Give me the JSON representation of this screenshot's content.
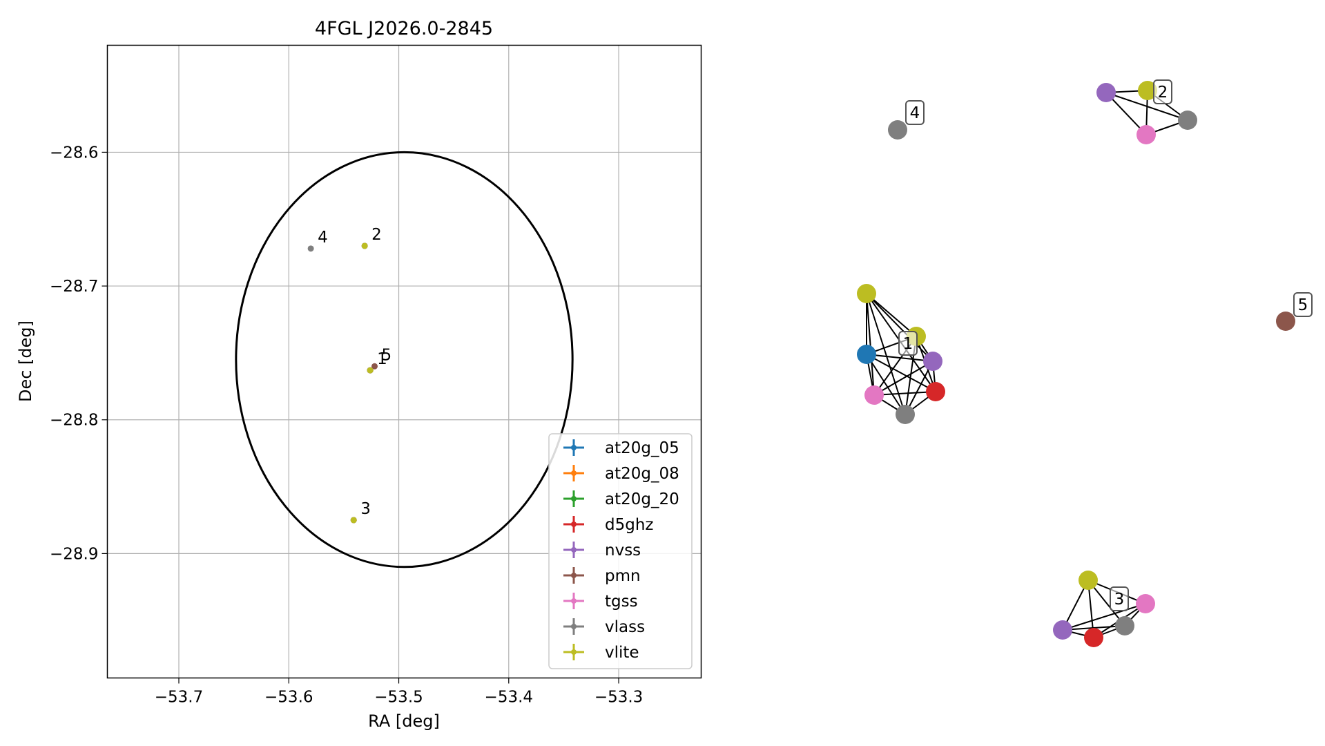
{
  "figure": {
    "background": "#ffffff"
  },
  "chart_data": [
    {
      "type": "scatter",
      "title": "4FGL J2026.0-2845",
      "xlabel": "RA [deg]",
      "ylabel": "Dec [deg]",
      "xlim": [
        -53.765,
        -53.225
      ],
      "ylim": [
        -28.993,
        -28.52
      ],
      "x_inverted": false,
      "grid": true,
      "xticks": [
        -53.7,
        -53.6,
        -53.5,
        -53.4,
        -53.3
      ],
      "xtick_labels": [
        "−53.7",
        "−53.6",
        "−53.5",
        "−53.4",
        "−53.3"
      ],
      "yticks": [
        -28.6,
        -28.7,
        -28.8,
        -28.9
      ],
      "ytick_labels": [
        "−28.6",
        "−28.7",
        "−28.8",
        "−28.9"
      ],
      "ellipse": {
        "center": [
          -53.495,
          -28.755
        ],
        "semi_axis_ra": 0.153,
        "semi_axis_dec": 0.155,
        "color": "#000000"
      },
      "legend_position": "lower-right",
      "series": [
        {
          "name": "at20g_05",
          "color": "#1f77b4",
          "x": [
            -53.526
          ],
          "y": [
            -28.763
          ]
        },
        {
          "name": "at20g_08",
          "color": "#ff7f0e",
          "x": [
            -53.526
          ],
          "y": [
            -28.763
          ]
        },
        {
          "name": "at20g_20",
          "color": "#2ca02c",
          "x": [
            -53.526
          ],
          "y": [
            -28.763
          ]
        },
        {
          "name": "d5ghz",
          "color": "#d62728",
          "x": [
            -53.526
          ],
          "y": [
            -28.763
          ]
        },
        {
          "name": "nvss",
          "color": "#9467bd",
          "x": [
            -53.526,
            -53.531,
            -53.541
          ],
          "y": [
            -28.763,
            -28.67,
            -28.875
          ]
        },
        {
          "name": "pmn",
          "color": "#8c564b",
          "x": [
            -53.522
          ],
          "y": [
            -28.76
          ]
        },
        {
          "name": "tgss",
          "color": "#e377c2",
          "x": [
            -53.526,
            -53.531,
            -53.541
          ],
          "y": [
            -28.763,
            -28.67,
            -28.875
          ]
        },
        {
          "name": "vlass",
          "color": "#7f7f7f",
          "x": [
            -53.526,
            -53.531,
            -53.541,
            -53.58
          ],
          "y": [
            -28.763,
            -28.67,
            -28.875,
            -28.672
          ]
        },
        {
          "name": "vlite",
          "color": "#bcbd22",
          "x": [
            -53.526,
            -53.531,
            -53.541
          ],
          "y": [
            -28.763,
            -28.67,
            -28.875
          ]
        }
      ],
      "annotations": [
        {
          "text": "1",
          "x": -53.526,
          "y": -28.763
        },
        {
          "text": "2",
          "x": -53.531,
          "y": -28.67
        },
        {
          "text": "3",
          "x": -53.541,
          "y": -28.875
        },
        {
          "text": "4",
          "x": -53.58,
          "y": -28.672
        },
        {
          "text": "5",
          "x": -53.522,
          "y": -28.76
        }
      ]
    },
    {
      "type": "network",
      "title": "",
      "node_colors": {
        "at20g_05": "#1f77b4",
        "d5ghz": "#d62728",
        "nvss": "#9467bd",
        "pmn": "#8c564b",
        "tgss": "#e377c2",
        "vlass": "#7f7f7f",
        "vlite": "#bcbd22"
      },
      "clusters": [
        {
          "label": "1",
          "members": [
            "vlite",
            "vlite",
            "at20g_05",
            "nvss",
            "d5ghz",
            "tgss",
            "vlass"
          ]
        },
        {
          "label": "2",
          "members": [
            "nvss",
            "vlite",
            "vlass",
            "tgss"
          ]
        },
        {
          "label": "3",
          "members": [
            "vlite",
            "tgss",
            "nvss",
            "d5ghz",
            "vlass"
          ]
        },
        {
          "label": "4",
          "members": [
            "vlass"
          ]
        },
        {
          "label": "5",
          "members": [
            "pmn"
          ]
        }
      ]
    }
  ]
}
